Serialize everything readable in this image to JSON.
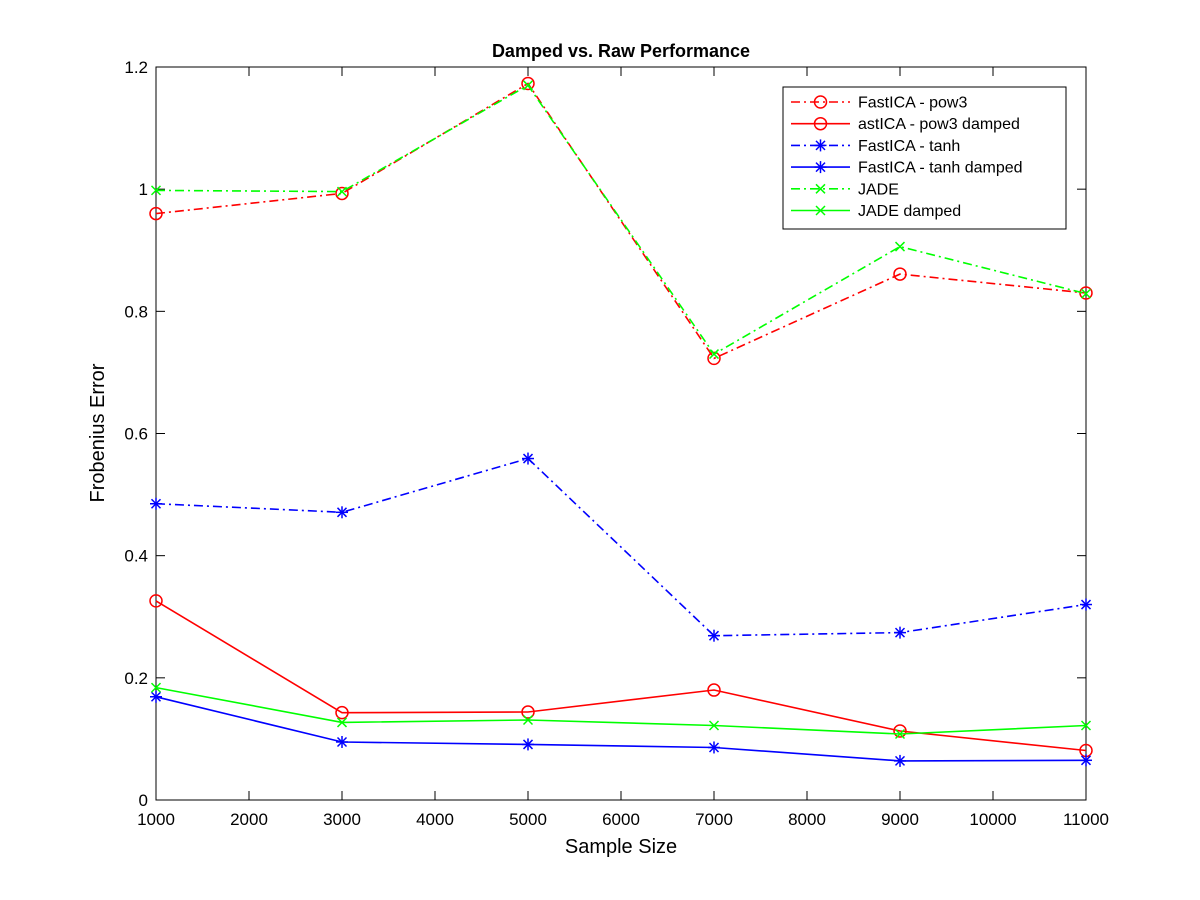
{
  "chart_data": {
    "type": "line",
    "title": "Damped vs. Raw Performance",
    "xlabel": "Sample Size",
    "ylabel": "Frobenius Error",
    "xlim": [
      1000,
      11000
    ],
    "ylim": [
      0,
      1.2
    ],
    "xticks": [
      1000,
      2000,
      3000,
      4000,
      5000,
      6000,
      7000,
      8000,
      9000,
      10000,
      11000
    ],
    "xtick_labels": [
      "1000",
      "2000",
      "3000",
      "4000",
      "5000",
      "6000",
      "7000",
      "8000",
      "9000",
      "10000",
      "11000"
    ],
    "yticks": [
      0,
      0.2,
      0.4,
      0.6,
      0.8,
      1.0,
      1.2
    ],
    "ytick_labels": [
      "0",
      "0.2",
      "0.4",
      "0.6",
      "0.8",
      "1",
      "1.2"
    ],
    "grid": false,
    "legend_position": "top-right",
    "x": [
      1000,
      3000,
      5000,
      7000,
      9000,
      11000
    ],
    "series": [
      {
        "name": "FastICA - pow3",
        "values": [
          0.96,
          0.993,
          1.173,
          0.723,
          0.861,
          0.83
        ],
        "color": "#ff0000",
        "dash": "dashdot",
        "marker": "circle"
      },
      {
        "name": "astICA - pow3 damped",
        "values": [
          0.326,
          0.143,
          0.144,
          0.18,
          0.113,
          0.081
        ],
        "color": "#ff0000",
        "dash": "solid",
        "marker": "circle"
      },
      {
        "name": "FastICA - tanh",
        "values": [
          0.485,
          0.471,
          0.559,
          0.269,
          0.274,
          0.32
        ],
        "color": "#0000ff",
        "dash": "dashdot",
        "marker": "asterisk"
      },
      {
        "name": "FastICA - tanh damped",
        "values": [
          0.169,
          0.095,
          0.091,
          0.086,
          0.064,
          0.065
        ],
        "color": "#0000ff",
        "dash": "solid",
        "marker": "asterisk"
      },
      {
        "name": "JADE",
        "values": [
          0.998,
          0.996,
          1.17,
          0.73,
          0.906,
          0.829
        ],
        "color": "#00ff00",
        "dash": "dashdot",
        "marker": "x"
      },
      {
        "name": "JADE damped",
        "values": [
          0.184,
          0.127,
          0.131,
          0.122,
          0.108,
          0.122
        ],
        "color": "#00ff00",
        "dash": "solid",
        "marker": "x"
      }
    ]
  }
}
